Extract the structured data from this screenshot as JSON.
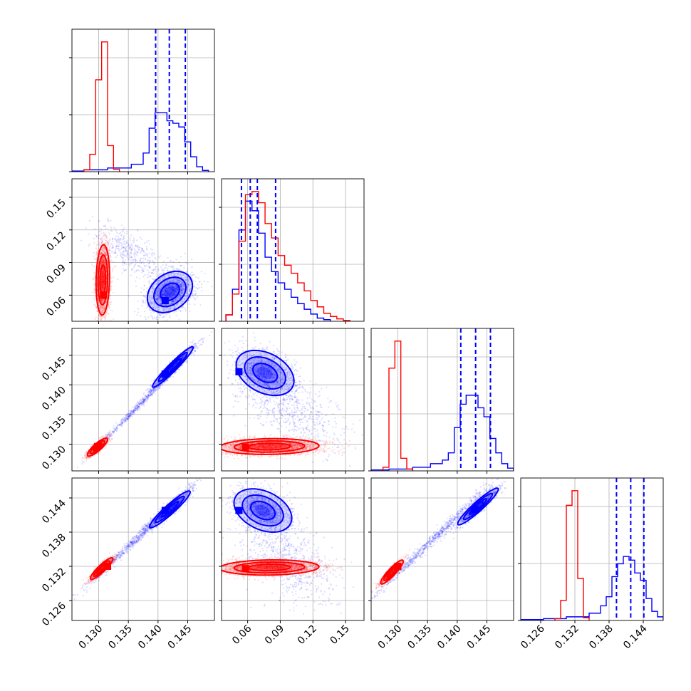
{
  "chart_data": {
    "type": "corner",
    "title": "",
    "grid": true,
    "colors": {
      "red_series": "#ff0000",
      "blue_series": "#0000ff",
      "frame": "#000000",
      "grid": "#b0b0b0"
    },
    "series": [
      {
        "color": "red"
      },
      {
        "color": "blue"
      }
    ],
    "parameters": [
      {
        "range": [
          0.1255,
          0.1495
        ],
        "ticks": [
          0.13,
          0.135,
          0.14,
          0.145
        ],
        "tick_labels": [
          "0.130",
          "0.135",
          "0.140",
          "0.145"
        ]
      },
      {
        "range": [
          0.036,
          0.167
        ],
        "ticks": [
          0.06,
          0.09,
          0.12,
          0.15
        ],
        "tick_labels": [
          "0.06",
          "0.09",
          "0.12",
          "0.15"
        ]
      },
      {
        "range": [
          0.1255,
          0.1495
        ],
        "ticks": [
          0.13,
          0.135,
          0.14,
          0.145
        ],
        "tick_labels": [
          "0.130",
          "0.135",
          "0.140",
          "0.145"
        ]
      },
      {
        "range": [
          0.1225,
          0.1475
        ],
        "ticks": [
          0.126,
          0.132,
          0.138,
          0.144
        ],
        "tick_labels": [
          "0.126",
          "0.132",
          "0.138",
          "0.144"
        ]
      }
    ],
    "marginals": [
      {
        "param": 0,
        "red": {
          "edges": [
            0.1275,
            0.1285,
            0.1295,
            0.1305,
            0.1315,
            0.1325,
            0.1335
          ],
          "counts": [
            3,
            28,
            148,
            209,
            42,
            4
          ]
        },
        "blue": {
          "edges": [
            0.1255,
            0.1275,
            0.1315,
            0.1355,
            0.1375,
            0.1385,
            0.1395,
            0.1405,
            0.1415,
            0.1425,
            0.1435,
            0.1445,
            0.1455,
            0.1465,
            0.1475,
            0.1485
          ],
          "counts": [
            1,
            3,
            6,
            12,
            30,
            70,
            95,
            95,
            82,
            78,
            72,
            48,
            24,
            8,
            2
          ]
        },
        "quantiles": [
          0.1396,
          0.1419,
          0.1446
        ]
      },
      {
        "param": 1,
        "red": {
          "edges": [
            0.04,
            0.046,
            0.052,
            0.058,
            0.064,
            0.07,
            0.076,
            0.082,
            0.088,
            0.094,
            0.1,
            0.106,
            0.112,
            0.118,
            0.124,
            0.13,
            0.136,
            0.142,
            0.148,
            0.154
          ],
          "counts": [
            8,
            34,
            100,
            158,
            162,
            148,
            122,
            104,
            82,
            70,
            60,
            48,
            38,
            26,
            18,
            10,
            6,
            3,
            1
          ]
        },
        "blue": {
          "edges": [
            0.04,
            0.046,
            0.052,
            0.058,
            0.064,
            0.07,
            0.076,
            0.082,
            0.088,
            0.094,
            0.1,
            0.106,
            0.112,
            0.118,
            0.124,
            0.13,
            0.136
          ],
          "counts": [
            8,
            40,
            114,
            150,
            138,
            110,
            80,
            62,
            48,
            40,
            30,
            22,
            15,
            9,
            4,
            2
          ]
        },
        "quantiles": [
          0.0543,
          0.0624,
          0.0689,
          0.0857
        ]
      },
      {
        "param": 2,
        "red": {
          "edges": [
            0.1275,
            0.1285,
            0.1295,
            0.1305,
            0.1315,
            0.1325
          ],
          "counts": [
            4,
            114,
            144,
            14,
            2
          ]
        },
        "blue": {
          "edges": [
            0.1255,
            0.1285,
            0.1325,
            0.1355,
            0.1375,
            0.1385,
            0.1395,
            0.1405,
            0.1415,
            0.1425,
            0.1435,
            0.1445,
            0.1455,
            0.1465,
            0.1475,
            0.1485,
            0.1495
          ],
          "counts": [
            1,
            2,
            4,
            8,
            12,
            20,
            48,
            74,
            84,
            84,
            70,
            60,
            36,
            20,
            8,
            3
          ]
        },
        "quantiles": [
          0.1406,
          0.1431,
          0.1456
        ]
      },
      {
        "param": 3,
        "red": {
          "edges": [
            0.1285,
            0.1295,
            0.1305,
            0.1315,
            0.1325,
            0.1335,
            0.1345
          ],
          "counts": [
            2,
            22,
            126,
            142,
            46,
            3
          ]
        },
        "blue": {
          "edges": [
            0.1225,
            0.1265,
            0.1305,
            0.1345,
            0.1365,
            0.1375,
            0.1385,
            0.1395,
            0.1405,
            0.1415,
            0.1425,
            0.1435,
            0.1445,
            0.1455,
            0.1465,
            0.1475
          ],
          "counts": [
            1,
            2,
            4,
            8,
            16,
            26,
            48,
            62,
            70,
            66,
            52,
            44,
            24,
            10,
            4
          ]
        },
        "quantiles": [
          0.1393,
          0.1418,
          0.1441
        ]
      }
    ],
    "joint_panels": [
      {
        "row": 1,
        "col": 0,
        "red": {
          "cx": 0.1307,
          "cy": 0.074,
          "sx": 0.0006,
          "sy": 0.017,
          "rho": 0.1,
          "n": 1600,
          "peak": [
            0.1308,
            0.06
          ]
        },
        "blue": [
          {
            "cx": 0.135,
            "cy": 0.1,
            "sx": 0.003,
            "sy": 0.012,
            "rho": -0.6,
            "n": 420
          },
          {
            "cx": 0.142,
            "cy": 0.063,
            "sx": 0.002,
            "sy": 0.01,
            "rho": 0.3,
            "n": 1400,
            "peak": [
              0.1412,
              0.055
            ]
          }
        ]
      },
      {
        "row": 2,
        "col": 0,
        "red": {
          "cx": 0.1298,
          "cy": 0.1295,
          "sx": 0.0009,
          "sy": 0.0008,
          "rho": 0.85,
          "n": 600,
          "peak": [
            0.1298,
            0.1296
          ]
        },
        "blue": [
          {
            "cx": 0.1375,
            "cy": 0.1372,
            "sx": 0.0042,
            "sy": 0.0042,
            "rho": 0.997,
            "n": 700
          },
          {
            "cx": 0.1425,
            "cy": 0.143,
            "sx": 0.0018,
            "sy": 0.0018,
            "rho": 0.96,
            "n": 900,
            "peak": [
              0.1412,
              0.1418
            ]
          }
        ]
      },
      {
        "row": 2,
        "col": 1,
        "red": {
          "cx": 0.08,
          "cy": 0.1296,
          "sx": 0.024,
          "sy": 0.0007,
          "rho": 0.1,
          "n": 1800,
          "peak": [
            0.058,
            0.1295
          ]
        },
        "blue": [
          {
            "cx": 0.076,
            "cy": 0.142,
            "sx": 0.014,
            "sy": 0.002,
            "rho": -0.35,
            "n": 1100,
            "peak": [
              0.052,
              0.1422
            ]
          },
          {
            "cx": 0.1,
            "cy": 0.136,
            "sx": 0.022,
            "sy": 0.0035,
            "rho": -0.5,
            "n": 700
          }
        ]
      },
      {
        "row": 3,
        "col": 0,
        "red": {
          "cx": 0.1305,
          "cy": 0.1316,
          "sx": 0.001,
          "sy": 0.001,
          "rho": 0.9,
          "n": 700,
          "peak": [
            0.1315,
            0.132
          ]
        },
        "blue": [
          {
            "cx": 0.137,
            "cy": 0.1375,
            "sx": 0.0045,
            "sy": 0.0045,
            "rho": 0.995,
            "n": 800
          },
          {
            "cx": 0.142,
            "cy": 0.142,
            "sx": 0.0018,
            "sy": 0.0017,
            "rho": 0.94,
            "n": 900,
            "peak": [
              0.1412,
              0.1418
            ]
          }
        ]
      },
      {
        "row": 3,
        "col": 1,
        "red": {
          "cx": 0.08,
          "cy": 0.1318,
          "sx": 0.024,
          "sy": 0.0007,
          "rho": 0.1,
          "n": 1800,
          "peak": [
            0.058,
            0.1316
          ]
        },
        "blue": [
          {
            "cx": 0.074,
            "cy": 0.1418,
            "sx": 0.014,
            "sy": 0.002,
            "rho": -0.35,
            "n": 1100,
            "peak": [
              0.052,
              0.1418
            ]
          },
          {
            "cx": 0.098,
            "cy": 0.133,
            "sx": 0.022,
            "sy": 0.004,
            "rho": -0.5,
            "n": 700
          }
        ]
      },
      {
        "row": 3,
        "col": 2,
        "red": {
          "cx": 0.129,
          "cy": 0.131,
          "sx": 0.001,
          "sy": 0.0011,
          "rho": 0.9,
          "n": 700,
          "peak": [
            0.13,
            0.132
          ]
        },
        "blue": [
          {
            "cx": 0.136,
            "cy": 0.1368,
            "sx": 0.005,
            "sy": 0.005,
            "rho": 0.995,
            "n": 800
          },
          {
            "cx": 0.1435,
            "cy": 0.1425,
            "sx": 0.0018,
            "sy": 0.0017,
            "rho": 0.94,
            "n": 900,
            "peak": [
              0.143,
              0.142
            ]
          }
        ]
      }
    ]
  }
}
